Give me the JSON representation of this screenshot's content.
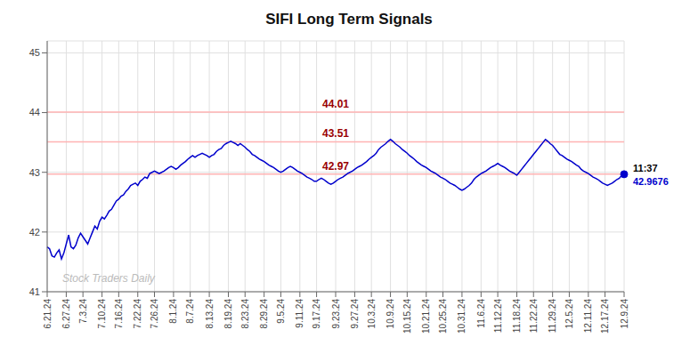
{
  "chart_data": {
    "type": "line",
    "title": "SIFI Long Term Signals",
    "categories": [
      "6.21.24",
      null,
      null,
      null,
      null,
      null,
      null,
      null,
      "6.27.24",
      null,
      null,
      null,
      null,
      null,
      null,
      "7.3.24",
      null,
      null,
      null,
      null,
      null,
      null,
      null,
      "7.10.24",
      null,
      null,
      null,
      null,
      null,
      null,
      "7.16.24",
      null,
      null,
      null,
      null,
      null,
      null,
      null,
      "7.22.24",
      null,
      null,
      null,
      null,
      null,
      null,
      "7.26.24",
      null,
      null,
      null,
      null,
      null,
      null,
      null,
      "8.1.24",
      null,
      null,
      null,
      null,
      null,
      null,
      "8.7.24",
      null,
      null,
      null,
      null,
      null,
      null,
      null,
      "8.13.24",
      null,
      null,
      null,
      null,
      null,
      null,
      null,
      "8.19.24",
      null,
      null,
      null,
      null,
      null,
      null,
      "8.23.24",
      null,
      null,
      null,
      null,
      null,
      null,
      null,
      "8.29.24",
      null,
      null,
      null,
      null,
      null,
      null,
      "9.5.24",
      null,
      null,
      null,
      null,
      null,
      null,
      null,
      "9.11.24",
      null,
      null,
      null,
      null,
      null,
      null,
      "9.17.24",
      null,
      null,
      null,
      null,
      null,
      null,
      null,
      "9.23.24",
      null,
      null,
      null,
      null,
      null,
      null,
      null,
      "9.27.24",
      null,
      null,
      null,
      null,
      null,
      null,
      "10.3.24",
      null,
      null,
      null,
      null,
      null,
      null,
      null,
      "10.9.24",
      null,
      null,
      null,
      null,
      null,
      null,
      "10.15.24",
      null,
      null,
      null,
      null,
      null,
      null,
      null,
      "10.21.24",
      null,
      null,
      null,
      null,
      null,
      null,
      "10.25.24",
      null,
      null,
      null,
      null,
      null,
      null,
      null,
      "10.31.24",
      null,
      null,
      null,
      null,
      null,
      null,
      null,
      "11.6.24",
      null,
      null,
      null,
      null,
      null,
      null,
      "11.12.24",
      null,
      null,
      null,
      null,
      null,
      null,
      null,
      "11.18.24",
      null,
      null,
      null,
      null,
      null,
      null,
      "11.22.24",
      null,
      null,
      null,
      null,
      null,
      null,
      null,
      "11.29.24",
      null,
      null,
      null,
      null,
      null,
      null,
      "12.5.24",
      null,
      null,
      null,
      null,
      null,
      null,
      null,
      "12.11.24",
      null,
      null,
      null,
      null,
      null,
      null,
      "12.17.24",
      null,
      null,
      null,
      null,
      null,
      null,
      null,
      "12.9.24"
    ],
    "values": [
      41.75,
      41.72,
      41.6,
      41.58,
      41.65,
      41.7,
      41.55,
      41.65,
      41.8,
      41.95,
      41.75,
      41.72,
      41.78,
      41.9,
      41.98,
      41.92,
      41.86,
      41.8,
      41.9,
      42.0,
      42.1,
      42.05,
      42.18,
      42.25,
      42.22,
      42.28,
      42.35,
      42.38,
      42.45,
      42.52,
      42.55,
      42.6,
      42.62,
      42.68,
      42.72,
      42.78,
      42.8,
      42.82,
      42.78,
      42.85,
      42.88,
      42.92,
      42.9,
      42.98,
      43.0,
      43.02,
      43.0,
      42.98,
      43.0,
      43.02,
      43.05,
      43.08,
      43.1,
      43.08,
      43.05,
      43.08,
      43.12,
      43.15,
      43.18,
      43.22,
      43.25,
      43.28,
      43.25,
      43.28,
      43.3,
      43.32,
      43.3,
      43.28,
      43.25,
      43.28,
      43.3,
      43.35,
      43.38,
      43.4,
      43.45,
      43.48,
      43.5,
      43.52,
      43.5,
      43.48,
      43.45,
      43.48,
      43.45,
      43.42,
      43.38,
      43.35,
      43.3,
      43.28,
      43.25,
      43.22,
      43.2,
      43.18,
      43.15,
      43.12,
      43.1,
      43.08,
      43.05,
      43.02,
      43.0,
      43.02,
      43.05,
      43.08,
      43.1,
      43.08,
      43.05,
      43.02,
      43.0,
      42.98,
      42.95,
      42.92,
      42.9,
      42.88,
      42.85,
      42.85,
      42.88,
      42.9,
      42.88,
      42.85,
      42.82,
      42.8,
      42.82,
      42.85,
      42.88,
      42.9,
      42.92,
      42.95,
      42.98,
      43.0,
      43.02,
      43.05,
      43.08,
      43.1,
      43.12,
      43.15,
      43.18,
      43.22,
      43.25,
      43.28,
      43.32,
      43.38,
      43.42,
      43.45,
      43.48,
      43.52,
      43.55,
      43.52,
      43.48,
      43.45,
      43.42,
      43.38,
      43.35,
      43.32,
      43.28,
      43.25,
      43.22,
      43.18,
      43.15,
      43.12,
      43.1,
      43.08,
      43.05,
      43.02,
      43.0,
      42.98,
      42.95,
      42.92,
      42.9,
      42.88,
      42.85,
      42.82,
      42.8,
      42.78,
      42.75,
      42.72,
      42.7,
      42.72,
      42.75,
      42.78,
      42.82,
      42.88,
      42.92,
      42.95,
      42.98,
      43.0,
      43.02,
      43.05,
      43.08,
      43.1,
      43.12,
      43.15,
      43.12,
      43.1,
      43.08,
      43.05,
      43.02,
      43.0,
      42.98,
      42.95,
      43.0,
      43.05,
      43.1,
      43.15,
      43.2,
      43.25,
      43.3,
      43.35,
      43.4,
      43.45,
      43.5,
      43.55,
      43.52,
      43.48,
      43.45,
      43.4,
      43.35,
      43.3,
      43.28,
      43.25,
      43.22,
      43.2,
      43.18,
      43.15,
      43.12,
      43.1,
      43.05,
      43.02,
      43.0,
      42.98,
      42.95,
      42.92,
      42.9,
      42.88,
      42.85,
      42.82,
      42.8,
      42.78,
      42.8,
      42.82,
      42.85,
      42.88,
      42.9,
      42.95,
      42.9676
    ],
    "color": "#0000cc",
    "ylim": [
      41,
      45.2
    ],
    "yticks": [
      41,
      42,
      43,
      44,
      45
    ],
    "grid": true,
    "hlines": [
      {
        "value": 44.01,
        "label": "44.01"
      },
      {
        "value": 43.51,
        "label": "43.51"
      },
      {
        "value": 42.97,
        "label": "42.97"
      }
    ],
    "hline_color": "#ffb3b3",
    "hline_label_color": "#990000",
    "watermark": {
      "text": "Stock Traders Daily",
      "color": "#bbbbbb"
    },
    "end_annotation": {
      "marker": "circle",
      "color": "#0000cc",
      "texts": [
        {
          "text": "11:37",
          "color": "#000000"
        },
        {
          "text": "42.9676",
          "color": "#0000cc"
        }
      ]
    }
  }
}
